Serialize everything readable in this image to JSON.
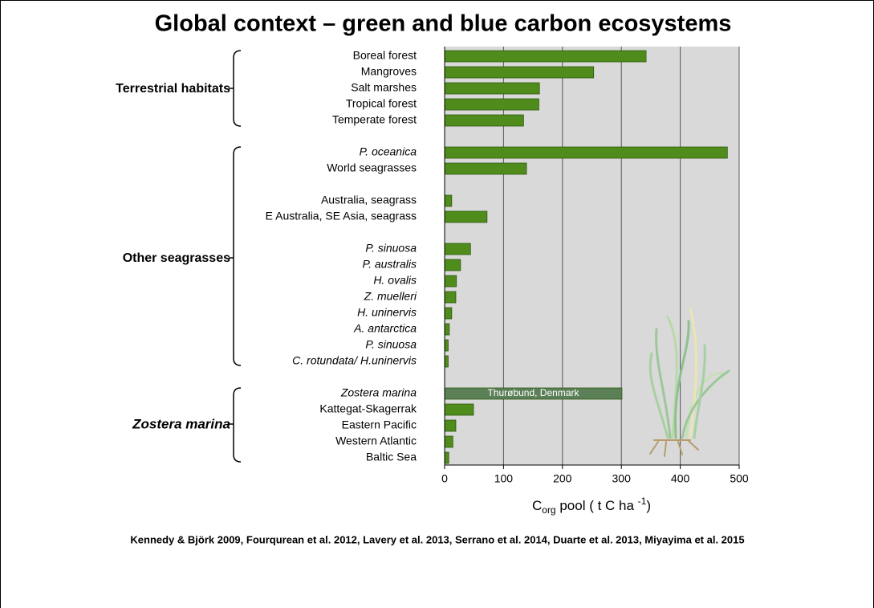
{
  "chart_data": {
    "type": "barh",
    "title": "Global context – green and blue carbon ecosystems",
    "categories": [
      "Boreal forest",
      "Mangroves",
      "Salt marshes",
      "Tropical forest",
      "Temperate forest",
      null,
      "P. oceanica",
      "World seagrasses",
      null,
      "Australia, seagrass",
      "E Australia, SE Asia, seagrass",
      null,
      "P. sinuosa",
      "P. australis",
      "H. ovalis",
      "Z. muelleri",
      "H. uninervis",
      "A. antarctica",
      "P. sinuosa",
      "C. rotundata/ H.uninervis",
      null,
      "Zostera marina",
      "Kattegat-Skagerrak",
      "Eastern Pacific",
      "Western Atlantic",
      "Baltic Sea"
    ],
    "italic": [
      false,
      false,
      false,
      false,
      false,
      false,
      true,
      false,
      false,
      false,
      false,
      false,
      true,
      true,
      true,
      true,
      true,
      true,
      true,
      true,
      false,
      true,
      false,
      false,
      false,
      false
    ],
    "values": [
      342,
      253,
      161,
      160,
      134,
      null,
      480,
      139,
      null,
      12,
      72,
      null,
      44,
      27,
      20,
      19,
      12,
      8,
      6,
      6,
      null,
      301,
      49,
      19,
      14,
      7
    ],
    "colors": [
      "#4f8c1c",
      "#4f8c1c",
      "#4f8c1c",
      "#4f8c1c",
      "#4f8c1c",
      null,
      "#4f8c1c",
      "#4f8c1c",
      null,
      "#4f8c1c",
      "#4f8c1c",
      null,
      "#4f8c1c",
      "#4f8c1c",
      "#4f8c1c",
      "#4f8c1c",
      "#4f8c1c",
      "#4f8c1c",
      "#4f8c1c",
      "#4f8c1c",
      null,
      "#5b7f57",
      "#4f8c1c",
      "#4f8c1c",
      "#4f8c1c",
      "#4f8c1c"
    ],
    "bar_annotation": "Thurøbund, Denmark",
    "groups": [
      "Terrestrial habitats",
      "Other seagrasses",
      "Zostera marina"
    ],
    "xlabel": [
      "C",
      "org",
      " pool ( t C ha ",
      "-1",
      ")"
    ],
    "xlim": [
      0,
      500
    ],
    "xticks": [
      0,
      100,
      200,
      300,
      400,
      500
    ],
    "grid": true,
    "source": "Kennedy & Björk 2009, Fourqurean et al. 2012, Lavery et al. 2013,  Serrano et al. 2014, Duarte et al. 2013, Miyayima et al. 2015"
  }
}
